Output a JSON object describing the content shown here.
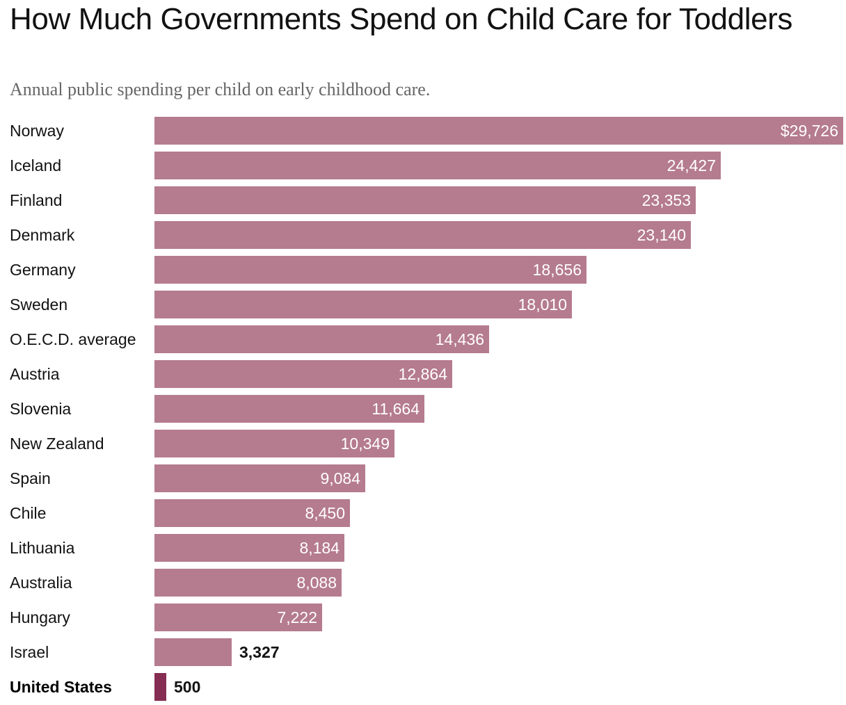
{
  "header": {
    "title": "How Much Governments Spend on Child Care for Toddlers",
    "subtitle": "Annual public spending per child on early childhood care."
  },
  "colors": {
    "bar": "#b57b8f",
    "highlight_bar": "#852d52",
    "text": "#121212",
    "subtitle": "#666666",
    "value_text_inside": "#ffffff"
  },
  "chart_data": {
    "type": "bar",
    "orientation": "horizontal",
    "title": "How Much Governments Spend on Child Care for Toddlers",
    "subtitle": "Annual public spending per child on early childhood care.",
    "categories": [
      "Norway",
      "Iceland",
      "Finland",
      "Denmark",
      "Germany",
      "Sweden",
      "O.E.C.D. average",
      "Austria",
      "Slovenia",
      "New Zealand",
      "Spain",
      "Chile",
      "Lithuania",
      "Australia",
      "Hungary",
      "Israel",
      "United States"
    ],
    "values": [
      29726,
      24427,
      23353,
      23140,
      18656,
      18010,
      14436,
      12864,
      11664,
      10349,
      9084,
      8450,
      8184,
      8088,
      7222,
      3327,
      500
    ],
    "data_labels": [
      "$29,726",
      "24,427",
      "23,353",
      "23,140",
      "18,656",
      "18,010",
      "14,436",
      "12,864",
      "11,664",
      "10,349",
      "9,084",
      "8,450",
      "8,184",
      "8,088",
      "7,222",
      "3,327",
      "500"
    ],
    "highlight": "United States",
    "xlim": [
      0,
      29726
    ],
    "grid": false,
    "legend": "none",
    "xlabel": "",
    "ylabel": ""
  }
}
